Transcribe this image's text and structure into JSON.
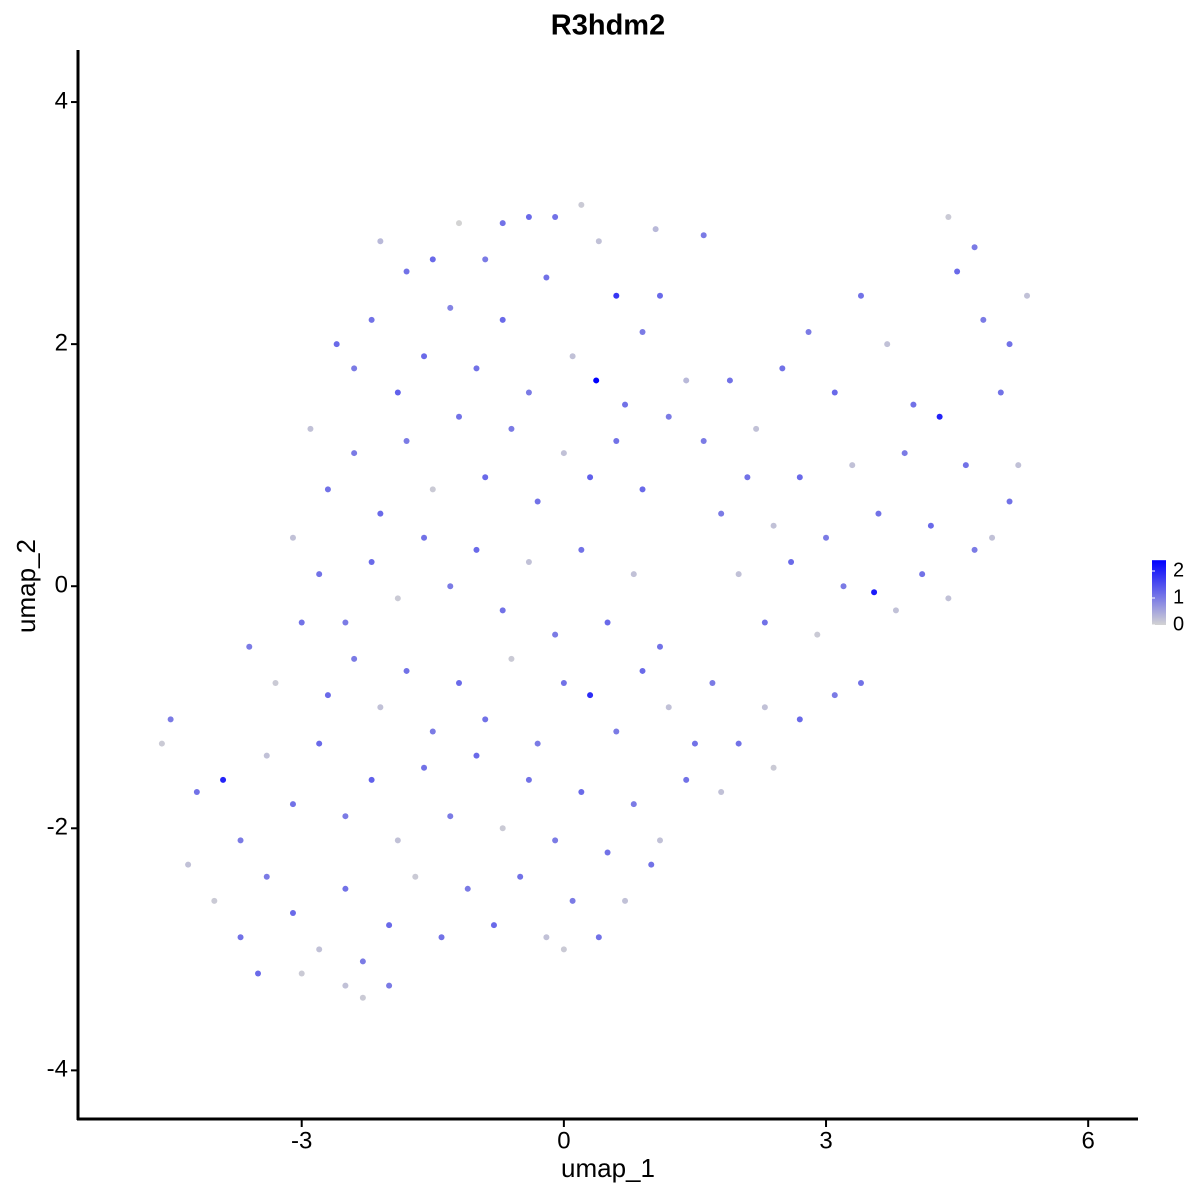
{
  "chart_data": {
    "type": "scatter",
    "title": "R3hdm2",
    "x_label": "umap_1",
    "y_label": "umap_2",
    "xlim": [
      -5.56,
      6.57
    ],
    "ylim": [
      -4.41,
      4.43
    ],
    "xticks": [
      -3,
      0,
      3,
      6
    ],
    "yticks": [
      -4,
      -2,
      0,
      2,
      4
    ],
    "color_low": "#d3d3d3",
    "color_high": "#0000ff",
    "colorbar": {
      "lim": [
        0,
        2.4
      ],
      "ticks": [
        0,
        1,
        2
      ]
    },
    "x": [
      -2.1,
      -1.8,
      -1.5,
      -1.2,
      -0.9,
      -0.7,
      -0.4,
      -0.1,
      0.2,
      0.4,
      0.6,
      1.1,
      1.05,
      1.6,
      -2.6,
      -2.4,
      -2.2,
      -1.9,
      -1.6,
      -1.3,
      -1.0,
      -0.7,
      -0.4,
      -0.2,
      0.1,
      0.37,
      0.7,
      0.9,
      1.4,
      -2.9,
      -2.7,
      -2.4,
      -2.1,
      -1.8,
      -1.5,
      -1.2,
      -0.9,
      -0.6,
      -0.3,
      0.0,
      0.3,
      0.6,
      0.9,
      1.2,
      -3.1,
      -2.8,
      -2.5,
      -2.2,
      -1.9,
      -1.6,
      -1.3,
      -1.0,
      -0.7,
      -0.4,
      -0.1,
      0.2,
      0.5,
      0.8,
      1.1,
      -3.6,
      -3.3,
      -3.0,
      -2.7,
      -2.4,
      -2.1,
      -1.8,
      -1.5,
      -1.2,
      -0.9,
      -0.6,
      -0.3,
      0.0,
      0.3,
      0.6,
      0.9,
      1.2,
      1.5,
      -4.6,
      -4.5,
      -4.2,
      -3.9,
      -3.7,
      -3.4,
      -3.1,
      -2.8,
      -2.5,
      -2.2,
      -1.9,
      -1.6,
      -1.3,
      -1.0,
      -0.7,
      -0.4,
      -0.1,
      0.2,
      0.5,
      0.8,
      1.1,
      1.4,
      1.8,
      2.4,
      -4.3,
      -4.0,
      -3.7,
      -3.4,
      -3.1,
      -2.8,
      -2.5,
      -2.3,
      -2.0,
      -1.7,
      -1.4,
      -1.1,
      -0.8,
      -0.5,
      -0.2,
      0.1,
      0.4,
      0.7,
      1.0,
      -2.3,
      -2.5,
      -2.0,
      0.0,
      -3.5,
      -3.0,
      1.6,
      1.9,
      2.2,
      2.5,
      2.8,
      3.1,
      3.4,
      3.7,
      4.0,
      4.3,
      4.5,
      4.8,
      5.1,
      5.3,
      4.4,
      4.7,
      5.0,
      5.2,
      1.8,
      2.1,
      2.4,
      2.7,
      3.0,
      3.3,
      3.6,
      3.9,
      4.2,
      4.6,
      4.9,
      5.1,
      2.0,
      2.3,
      2.6,
      2.9,
      3.2,
      3.55,
      3.8,
      4.1,
      4.4,
      4.7,
      3.4,
      3.1,
      2.7,
      2.3,
      2.0,
      1.7
    ],
    "y": [
      2.85,
      2.6,
      2.7,
      3.0,
      2.7,
      3.0,
      3.05,
      3.05,
      3.15,
      2.85,
      2.4,
      2.4,
      2.95,
      2.9,
      2.0,
      1.8,
      2.2,
      1.6,
      1.9,
      2.3,
      1.8,
      2.2,
      1.6,
      2.55,
      1.9,
      1.7,
      1.5,
      2.1,
      1.7,
      1.3,
      0.8,
      1.1,
      0.6,
      1.2,
      0.8,
      1.4,
      0.9,
      1.3,
      0.7,
      1.1,
      0.9,
      1.2,
      0.8,
      1.4,
      0.4,
      0.1,
      -0.3,
      0.2,
      -0.1,
      0.4,
      0.0,
      0.3,
      -0.2,
      0.2,
      -0.4,
      0.3,
      -0.3,
      0.1,
      -0.5,
      -0.5,
      -0.8,
      -0.3,
      -0.9,
      -0.6,
      -1.0,
      -0.7,
      -1.2,
      -0.8,
      -1.1,
      -0.6,
      -1.3,
      -0.8,
      -0.9,
      -1.2,
      -0.7,
      -1.0,
      -1.3,
      -1.3,
      -1.1,
      -1.7,
      -1.6,
      -2.1,
      -1.4,
      -1.8,
      -1.3,
      -1.9,
      -1.6,
      -2.1,
      -1.5,
      -1.9,
      -1.4,
      -2.0,
      -1.6,
      -2.1,
      -1.7,
      -2.2,
      -1.8,
      -2.1,
      -1.6,
      -1.7,
      -1.5,
      -2.3,
      -2.6,
      -2.9,
      -2.4,
      -2.7,
      -3.0,
      -2.5,
      -3.1,
      -2.8,
      -2.4,
      -2.9,
      -2.5,
      -2.8,
      -2.4,
      -2.9,
      -2.6,
      -2.9,
      -2.6,
      -2.3,
      -3.4,
      -3.3,
      -3.3,
      -3.0,
      -3.2,
      -3.2,
      1.2,
      1.7,
      1.3,
      1.8,
      2.1,
      1.6,
      2.4,
      2.0,
      1.5,
      1.4,
      2.6,
      2.2,
      2.0,
      2.4,
      3.05,
      2.8,
      1.6,
      1.0,
      0.6,
      0.9,
      0.5,
      0.9,
      0.4,
      1.0,
      0.6,
      1.1,
      0.5,
      1.0,
      0.4,
      0.7,
      0.1,
      -0.3,
      0.2,
      -0.4,
      0.0,
      -0.05,
      -0.2,
      0.1,
      -0.1,
      0.3,
      -0.8,
      -0.9,
      -1.1,
      -1.0,
      -1.3,
      -0.8
    ],
    "expression": [
      0.3,
      1.1,
      1.2,
      0,
      1.0,
      1.1,
      1.2,
      1.1,
      0.1,
      0.2,
      1.8,
      1.2,
      0.3,
      1.0,
      1.2,
      1.0,
      1.1,
      1.3,
      1.2,
      0.9,
      1.1,
      1.2,
      1.0,
      1.1,
      0.2,
      2.4,
      1.1,
      1.0,
      0.3,
      0.2,
      1.1,
      1.0,
      1.2,
      1.0,
      0.1,
      1.1,
      1.2,
      1.0,
      1.1,
      0.2,
      1.3,
      1.1,
      1.2,
      1.0,
      0.2,
      1.1,
      1.0,
      1.2,
      0.1,
      1.1,
      1.0,
      1.2,
      1.1,
      0.2,
      1.0,
      1.1,
      1.2,
      0.2,
      1.1,
      1.0,
      0.1,
      1.1,
      1.2,
      1.0,
      0.2,
      1.1,
      1.0,
      1.2,
      1.1,
      0.1,
      1.0,
      1.1,
      1.9,
      1.0,
      1.2,
      0.2,
      1.1,
      0.1,
      1.0,
      1.1,
      2.0,
      1.0,
      0.2,
      1.1,
      1.2,
      1.0,
      1.3,
      0.2,
      1.1,
      1.0,
      1.2,
      0.1,
      1.1,
      1.0,
      1.2,
      1.1,
      1.0,
      0.2,
      1.1,
      0.2,
      0.1,
      0.2,
      0.1,
      1.1,
      1.0,
      1.2,
      0.2,
      1.1,
      1.0,
      1.2,
      0.1,
      1.1,
      1.0,
      1.2,
      1.1,
      0.2,
      1.0,
      1.1,
      0.2,
      1.1,
      0.1,
      0.2,
      1.0,
      0.1,
      1.2,
      0.1,
      1.0,
      1.1,
      0.2,
      1.1,
      1.0,
      1.2,
      1.1,
      0.2,
      1.1,
      2.0,
      1.2,
      1.0,
      1.1,
      0.2,
      0.1,
      1.0,
      1.1,
      0.2,
      1.0,
      1.1,
      0.2,
      1.2,
      1.0,
      0.2,
      1.1,
      1.0,
      1.2,
      1.1,
      0.2,
      1.1,
      0.2,
      1.1,
      1.2,
      0.1,
      1.0,
      2.1,
      0.2,
      1.1,
      0.2,
      1.0,
      1.1,
      1.0,
      1.2,
      0.2,
      1.1,
      1.0
    ]
  }
}
